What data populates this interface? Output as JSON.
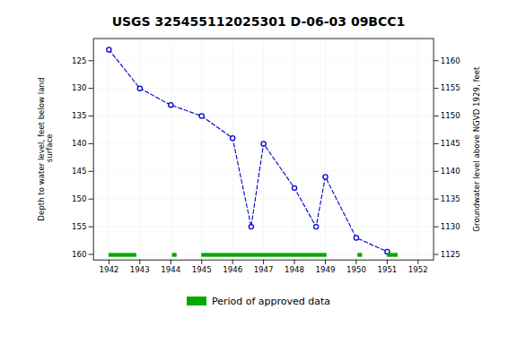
{
  "chart_data": {
    "type": "line",
    "title": "USGS 325455112025301 D-06-03 09BCC1",
    "ylabel": "Depth to water level, feet below land\n surface",
    "y2label": "Groundwater level above NGVD 1929, feet",
    "x": [
      1942.0,
      1943.0,
      1944.0,
      1945.0,
      1946.0,
      1946.6,
      1947.0,
      1948.0,
      1948.7,
      1949.0,
      1950.0,
      1951.0
    ],
    "series": [
      {
        "type": "line",
        "color": "#0000CC",
        "marker": "circle",
        "line_style": "dashed",
        "values": [
          123.0,
          130.0,
          133.0,
          135.0,
          139.0,
          155.0,
          140.0,
          148.0,
          155.0,
          146.0,
          157.0,
          159.5
        ]
      },
      {
        "name": "Period of approved data",
        "type": "bar",
        "color": "#00AA00",
        "ranges": [
          [
            1942.0,
            1942.9
          ],
          [
            1944.05,
            1944.2
          ],
          [
            1945.0,
            1949.05
          ],
          [
            1950.05,
            1950.2
          ],
          [
            1951.0,
            1951.35
          ]
        ]
      }
    ],
    "xlim": [
      1941.5,
      1952.5
    ],
    "xticks": [
      1942,
      1943,
      1944,
      1945,
      1946,
      1947,
      1948,
      1949,
      1950,
      1951,
      1952
    ],
    "ylim": [
      161,
      121
    ],
    "yticks": [
      125,
      130,
      135,
      140,
      145,
      150,
      155,
      160
    ],
    "y2lim": [
      1124,
      1164
    ],
    "y2ticks": [
      1125,
      1130,
      1135,
      1140,
      1145,
      1150,
      1155,
      1160
    ],
    "grid": true,
    "legend": "bottom"
  }
}
